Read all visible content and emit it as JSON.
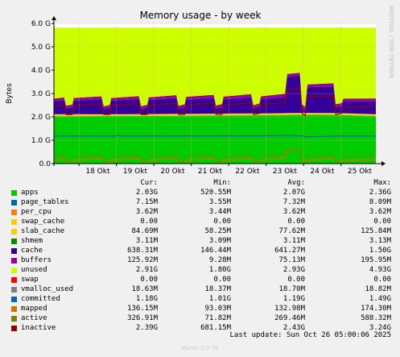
{
  "chart_data": {
    "type": "area",
    "title": "Memory usage - by week",
    "ylabel": "Bytes",
    "side_label": "RRDTOOL / TOBI OETIKER",
    "x_ticks": [
      "18 Okt",
      "19 Okt",
      "20 Okt",
      "21 Okt",
      "22 Okt",
      "23 Okt",
      "24 Okt",
      "25 Okt"
    ],
    "y_ticks": [
      "0.0",
      "1.0 G",
      "2.0 G",
      "3.0 G",
      "4.0 G",
      "5.0 G",
      "6.0 G"
    ],
    "ylim": [
      0,
      6.0
    ],
    "x_day_range": [
      17.33,
      25.93
    ],
    "totals": {
      "description": "Total physical RAM of about 5.8 G is filled by stacked areas; unused fills the rest",
      "total_ram": 5.82
    },
    "series": [
      {
        "name": "apps",
        "color": "#00cc00",
        "points": [
          [
            17.33,
            2.03
          ],
          [
            18.0,
            2.03
          ],
          [
            19.0,
            2.04
          ],
          [
            20.0,
            2.04
          ],
          [
            21.0,
            2.05
          ],
          [
            22.0,
            2.06
          ],
          [
            23.0,
            2.07
          ],
          [
            24.0,
            2.09
          ],
          [
            25.0,
            2.08
          ],
          [
            25.93,
            2.03
          ]
        ]
      },
      {
        "name": "slab_cache",
        "color": "#ffcc00",
        "points": [
          [
            17.33,
            0.08
          ],
          [
            18.0,
            0.08
          ],
          [
            19.0,
            0.07
          ],
          [
            20.0,
            0.08
          ],
          [
            21.0,
            0.08
          ],
          [
            22.0,
            0.08
          ],
          [
            23.0,
            0.08
          ],
          [
            24.0,
            0.08
          ],
          [
            25.0,
            0.08
          ],
          [
            25.93,
            0.08
          ]
        ]
      },
      {
        "name": "cache",
        "color": "#330099",
        "points": [
          [
            17.33,
            0.55
          ],
          [
            17.6,
            0.6
          ],
          [
            17.66,
            0.25
          ],
          [
            17.82,
            0.3
          ],
          [
            17.86,
            0.58
          ],
          [
            18.6,
            0.65
          ],
          [
            18.66,
            0.22
          ],
          [
            18.82,
            0.28
          ],
          [
            18.86,
            0.58
          ],
          [
            19.6,
            0.65
          ],
          [
            19.66,
            0.22
          ],
          [
            19.82,
            0.28
          ],
          [
            19.86,
            0.6
          ],
          [
            20.6,
            0.68
          ],
          [
            20.66,
            0.22
          ],
          [
            20.82,
            0.28
          ],
          [
            20.86,
            0.6
          ],
          [
            21.6,
            0.68
          ],
          [
            21.66,
            0.22
          ],
          [
            21.82,
            0.28
          ],
          [
            21.86,
            0.6
          ],
          [
            22.6,
            0.7
          ],
          [
            22.66,
            0.22
          ],
          [
            22.82,
            0.3
          ],
          [
            22.86,
            0.6
          ],
          [
            23.5,
            0.7
          ],
          [
            23.56,
            1.55
          ],
          [
            23.9,
            1.6
          ],
          [
            23.96,
            0.25
          ],
          [
            24.04,
            0.15
          ],
          [
            24.1,
            1.1
          ],
          [
            24.8,
            1.15
          ],
          [
            24.86,
            0.25
          ],
          [
            25.02,
            0.3
          ],
          [
            25.06,
            0.5
          ],
          [
            25.93,
            0.55
          ]
        ]
      },
      {
        "name": "buffers",
        "color": "#990099",
        "points": [
          [
            17.33,
            0.12
          ],
          [
            18.0,
            0.12
          ],
          [
            19.0,
            0.12
          ],
          [
            20.0,
            0.12
          ],
          [
            21.0,
            0.13
          ],
          [
            22.0,
            0.13
          ],
          [
            23.0,
            0.13
          ],
          [
            24.0,
            0.12
          ],
          [
            25.0,
            0.13
          ],
          [
            25.93,
            0.13
          ]
        ]
      },
      {
        "name": "unused",
        "color": "#ccff00",
        "points": [
          [
            17.33,
            3.0
          ],
          [
            25.93,
            2.9
          ]
        ]
      },
      {
        "name": "swap",
        "color": "#ff0000",
        "points": [
          [
            17.33,
            0.0
          ],
          [
            25.93,
            0.0
          ]
        ]
      }
    ],
    "lines": [
      {
        "name": "committed",
        "color": "#0066b3",
        "points": [
          [
            17.33,
            1.18
          ],
          [
            19.0,
            1.18
          ],
          [
            19.05,
            1.21
          ],
          [
            19.12,
            1.18
          ],
          [
            23.0,
            1.19
          ],
          [
            23.6,
            1.2
          ],
          [
            24.0,
            1.18
          ],
          [
            24.05,
            1.15
          ],
          [
            25.0,
            1.18
          ],
          [
            25.93,
            1.18
          ]
        ]
      },
      {
        "name": "mapped",
        "color": "#cc7700",
        "points": [
          [
            17.33,
            0.13
          ],
          [
            17.6,
            0.22
          ],
          [
            17.66,
            0.1
          ],
          [
            17.82,
            0.1
          ],
          [
            17.86,
            0.14
          ],
          [
            18.6,
            0.22
          ],
          [
            18.66,
            0.1
          ],
          [
            18.82,
            0.1
          ],
          [
            18.86,
            0.14
          ],
          [
            19.6,
            0.22
          ],
          [
            19.66,
            0.1
          ],
          [
            19.82,
            0.1
          ],
          [
            19.86,
            0.14
          ],
          [
            20.6,
            0.22
          ],
          [
            20.66,
            0.1
          ],
          [
            20.82,
            0.1
          ],
          [
            20.86,
            0.14
          ],
          [
            21.6,
            0.22
          ],
          [
            21.66,
            0.1
          ],
          [
            21.82,
            0.1
          ],
          [
            21.86,
            0.14
          ],
          [
            22.6,
            0.22
          ],
          [
            22.66,
            0.1
          ],
          [
            22.82,
            0.1
          ],
          [
            22.86,
            0.14
          ],
          [
            23.5,
            0.25
          ],
          [
            23.56,
            0.55
          ],
          [
            23.9,
            0.6
          ],
          [
            23.96,
            0.1
          ],
          [
            24.04,
            0.1
          ],
          [
            24.1,
            0.14
          ],
          [
            24.8,
            0.22
          ],
          [
            24.86,
            0.1
          ],
          [
            25.02,
            0.1
          ],
          [
            25.06,
            0.14
          ],
          [
            25.93,
            0.17
          ]
        ]
      },
      {
        "name": "inactive",
        "color": "#990000",
        "points": [
          [
            17.33,
            2.45
          ],
          [
            17.6,
            2.5
          ],
          [
            17.66,
            2.1
          ],
          [
            17.82,
            2.1
          ],
          [
            17.86,
            2.5
          ],
          [
            18.6,
            2.55
          ],
          [
            18.66,
            2.1
          ],
          [
            18.82,
            2.1
          ],
          [
            18.86,
            2.5
          ],
          [
            19.6,
            2.55
          ],
          [
            19.66,
            2.1
          ],
          [
            19.82,
            2.1
          ],
          [
            19.86,
            2.5
          ],
          [
            20.6,
            2.58
          ],
          [
            20.66,
            2.1
          ],
          [
            20.82,
            2.1
          ],
          [
            20.86,
            2.5
          ],
          [
            21.6,
            2.6
          ],
          [
            21.66,
            2.1
          ],
          [
            21.82,
            2.1
          ],
          [
            21.86,
            2.5
          ],
          [
            22.6,
            2.6
          ],
          [
            22.66,
            2.1
          ],
          [
            22.82,
            2.15
          ],
          [
            22.86,
            2.55
          ],
          [
            23.5,
            2.6
          ],
          [
            23.56,
            3.18
          ],
          [
            23.9,
            3.22
          ],
          [
            23.96,
            2.15
          ],
          [
            24.04,
            2.05
          ],
          [
            24.1,
            2.88
          ],
          [
            24.8,
            2.9
          ],
          [
            24.86,
            2.1
          ],
          [
            25.02,
            2.15
          ],
          [
            25.06,
            2.4
          ],
          [
            25.93,
            2.45
          ]
        ]
      },
      {
        "name": "active",
        "color": "#808000",
        "points": [
          [
            17.33,
            0.3
          ],
          [
            17.6,
            0.35
          ],
          [
            17.66,
            0.08
          ],
          [
            17.82,
            0.1
          ],
          [
            17.86,
            0.3
          ],
          [
            18.6,
            0.36
          ],
          [
            18.66,
            0.08
          ],
          [
            18.82,
            0.1
          ],
          [
            18.86,
            0.3
          ],
          [
            19.6,
            0.36
          ],
          [
            19.66,
            0.08
          ],
          [
            19.82,
            0.1
          ],
          [
            19.86,
            0.3
          ],
          [
            20.6,
            0.38
          ],
          [
            20.66,
            0.08
          ],
          [
            20.82,
            0.1
          ],
          [
            20.86,
            0.3
          ],
          [
            21.6,
            0.38
          ],
          [
            21.66,
            0.08
          ],
          [
            21.82,
            0.1
          ],
          [
            21.86,
            0.3
          ],
          [
            22.6,
            0.4
          ],
          [
            22.66,
            0.08
          ],
          [
            22.82,
            0.1
          ],
          [
            22.86,
            0.3
          ],
          [
            23.5,
            0.4
          ],
          [
            23.56,
            0.58
          ],
          [
            23.9,
            0.6
          ],
          [
            23.96,
            0.1
          ],
          [
            24.04,
            0.08
          ],
          [
            24.1,
            0.3
          ],
          [
            24.8,
            0.35
          ],
          [
            24.86,
            0.08
          ],
          [
            25.02,
            0.1
          ],
          [
            25.06,
            0.3
          ],
          [
            25.93,
            0.33
          ]
        ]
      }
    ]
  },
  "legend": {
    "headers": [
      "Cur:",
      "Min:",
      "Avg:",
      "Max:"
    ],
    "rows": [
      {
        "name": "apps",
        "color": "#00cc00",
        "cur": "2.03G",
        "min": "520.55M",
        "avg": "2.07G",
        "max": "2.36G"
      },
      {
        "name": "page_tables",
        "color": "#0066b3",
        "cur": "7.15M",
        "min": "3.55M",
        "avg": "7.32M",
        "max": "8.09M"
      },
      {
        "name": "per_cpu",
        "color": "#ff8000",
        "cur": "3.62M",
        "min": "3.44M",
        "avg": "3.62M",
        "max": "3.62M"
      },
      {
        "name": "swap_cache",
        "color": "#ffcc00",
        "cur": "0.00",
        "min": "0.00",
        "avg": "0.00",
        "max": "0.00"
      },
      {
        "name": "slab_cache",
        "color": "#ffcc00",
        "cur": "84.69M",
        "min": "58.25M",
        "avg": "77.62M",
        "max": "125.84M"
      },
      {
        "name": "shmem",
        "color": "#008f00",
        "cur": "3.11M",
        "min": "3.09M",
        "avg": "3.11M",
        "max": "3.13M"
      },
      {
        "name": "cache",
        "color": "#330099",
        "cur": "638.31M",
        "min": "146.44M",
        "avg": "641.27M",
        "max": "1.50G"
      },
      {
        "name": "buffers",
        "color": "#990099",
        "cur": "125.92M",
        "min": "9.28M",
        "avg": "75.13M",
        "max": "195.95M"
      },
      {
        "name": "unused",
        "color": "#ccff00",
        "cur": "2.91G",
        "min": "1.80G",
        "avg": "2.93G",
        "max": "4.93G"
      },
      {
        "name": "swap",
        "color": "#ff0000",
        "cur": "0.00",
        "min": "0.00",
        "avg": "0.00",
        "max": "0.00"
      },
      {
        "name": "vmalloc_used",
        "color": "#808080",
        "cur": "18.63M",
        "min": "18.37M",
        "avg": "18.70M",
        "max": "18.82M"
      },
      {
        "name": "committed",
        "color": "#0066b3",
        "cur": "1.18G",
        "min": "1.01G",
        "avg": "1.19G",
        "max": "1.49G"
      },
      {
        "name": "mapped",
        "color": "#cc7700",
        "cur": "136.15M",
        "min": "93.03M",
        "avg": "132.98M",
        "max": "174.30M"
      },
      {
        "name": "active",
        "color": "#808000",
        "cur": "326.91M",
        "min": "71.82M",
        "avg": "269.46M",
        "max": "588.32M"
      },
      {
        "name": "inactive",
        "color": "#990000",
        "cur": "2.39G",
        "min": "681.15M",
        "avg": "2.43G",
        "max": "3.24G"
      }
    ]
  },
  "last_update": "Last update: Sun Oct 26 05:00:06 2025",
  "footer": "Munin 2.0.76"
}
